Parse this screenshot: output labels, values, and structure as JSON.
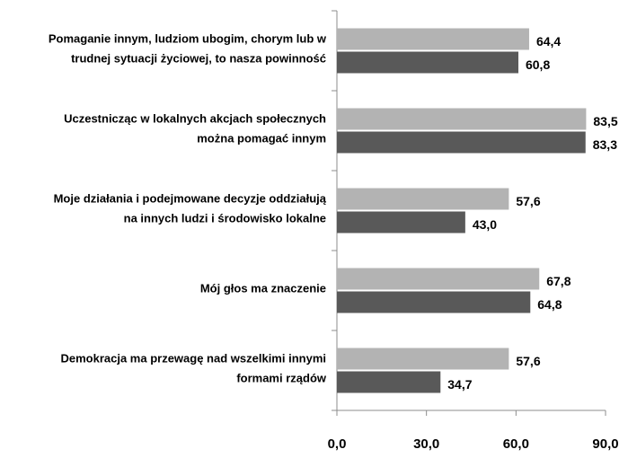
{
  "chart_data": {
    "type": "bar",
    "orientation": "horizontal",
    "categories": [
      [
        "Pomaganie innym, ludziom ubogim, chorym lub w",
        "trudnej sytuacji życiowej, to nasza powinność"
      ],
      [
        "Uczestnicząc w lokalnych akcjach społecznych",
        "można pomagać innym"
      ],
      [
        "Moje działania i podejmowane decyzje oddziałują",
        "na innych ludzi i środowisko lokalne"
      ],
      [
        "Mój głos ma znaczenie"
      ],
      [
        "Demokracja ma przewagę nad wszelkimi innymi",
        "formami rządów"
      ]
    ],
    "series": [
      {
        "color": "#b3b3b3",
        "values": [
          64.4,
          83.5,
          57.6,
          67.8,
          57.6
        ],
        "value_labels": [
          "64,4",
          "83,5",
          "57,6",
          "67,8",
          "57,6"
        ]
      },
      {
        "color": "#595959",
        "values": [
          60.8,
          83.3,
          43.0,
          64.8,
          34.7
        ],
        "value_labels": [
          "60,8",
          "83,3",
          "43,0",
          "64,8",
          "34,7"
        ]
      }
    ],
    "xlim": [
      0,
      90
    ],
    "xticks": [
      {
        "value": 0,
        "label": "0,0"
      },
      {
        "value": 30,
        "label": "30,0"
      },
      {
        "value": 60,
        "label": "60,0"
      },
      {
        "value": 90,
        "label": "90,0"
      }
    ],
    "grid": false
  }
}
